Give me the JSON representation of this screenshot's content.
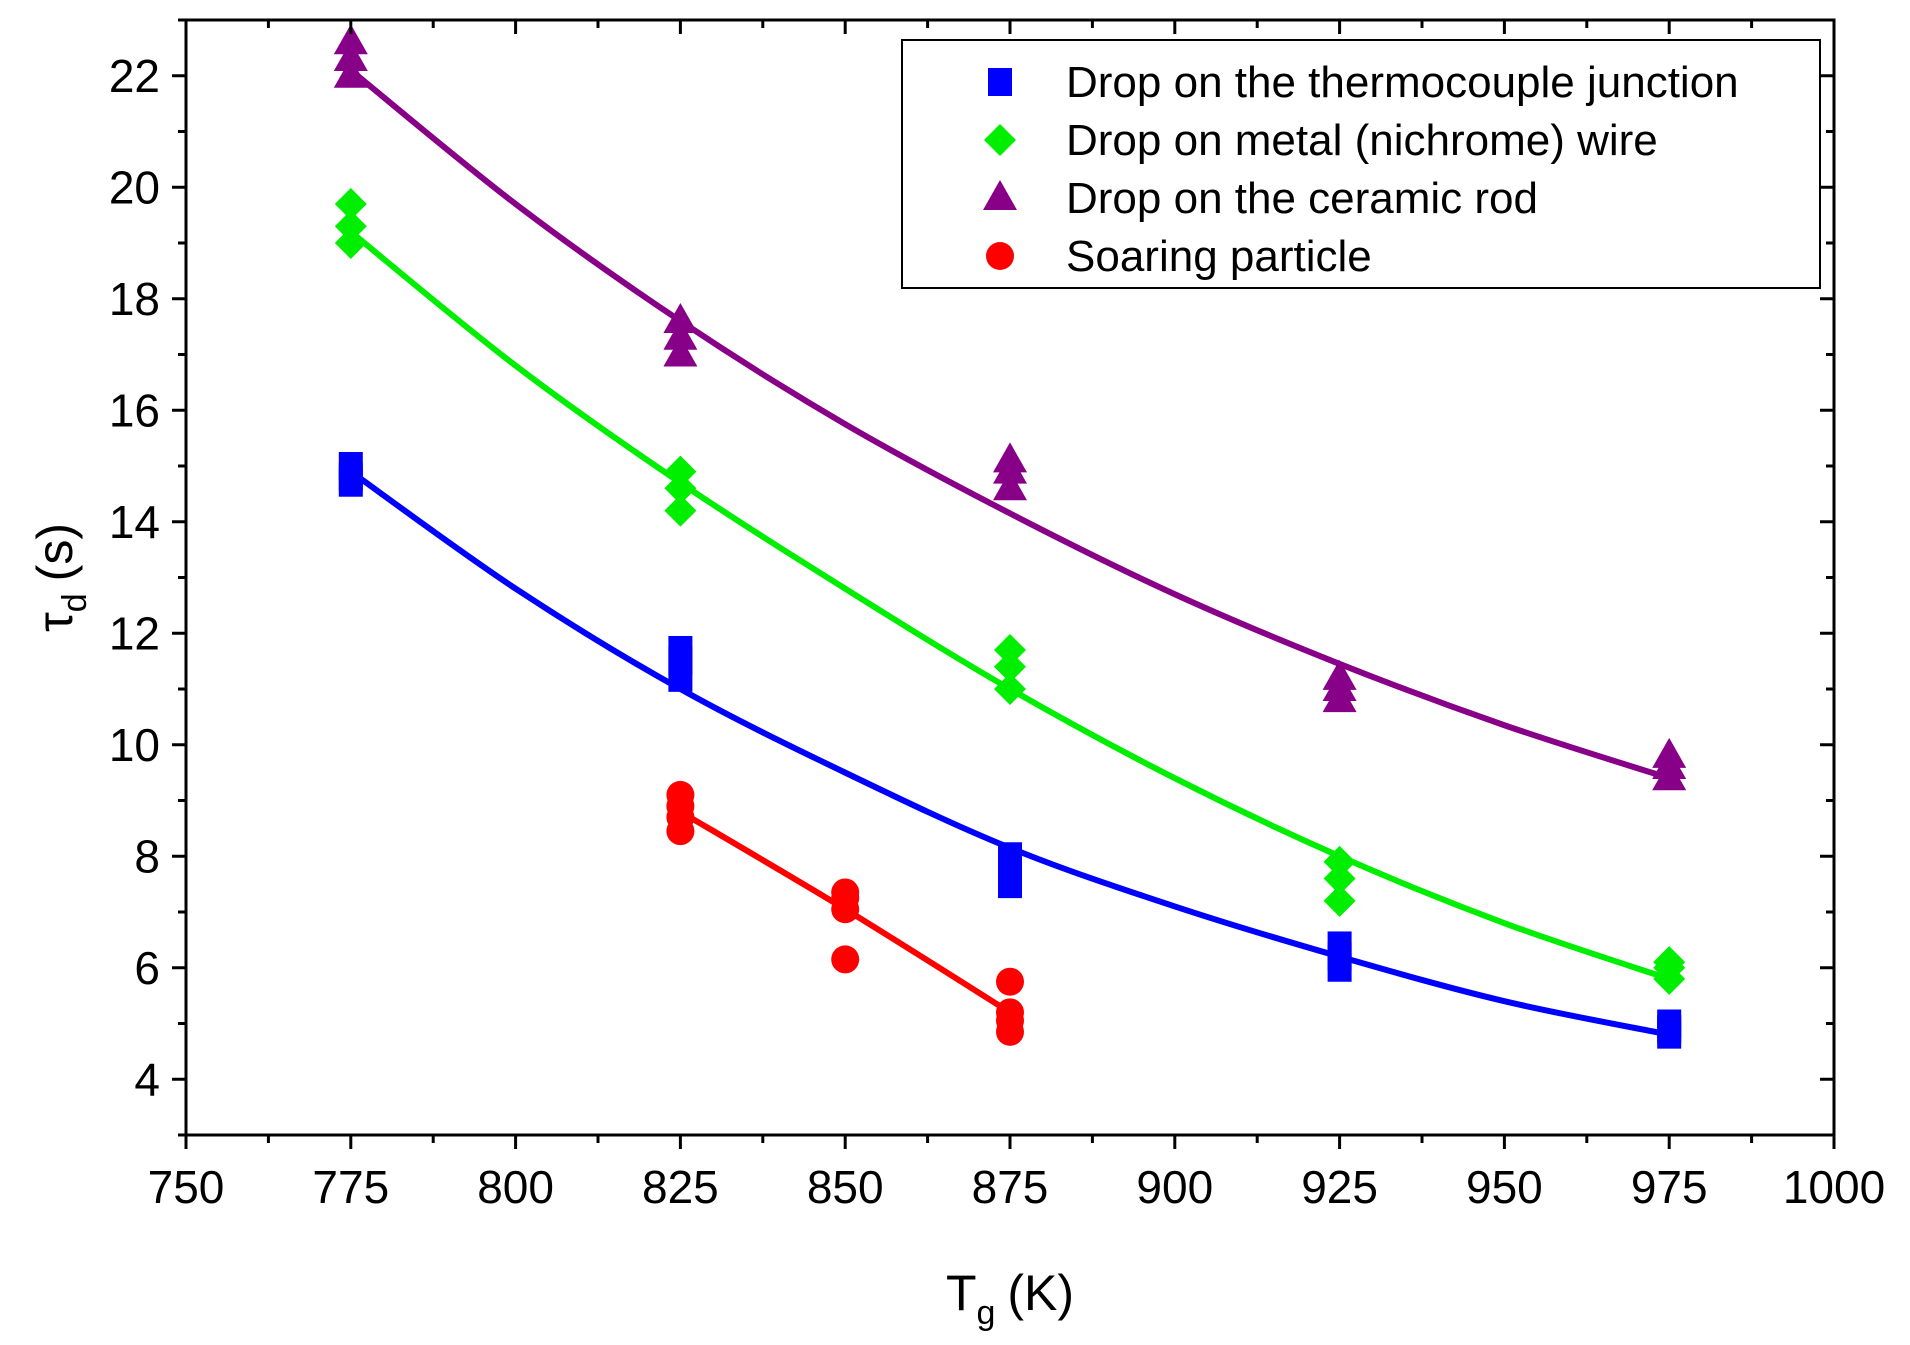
{
  "chart_data": {
    "type": "scatter",
    "title": "",
    "xlabel": "T",
    "xlabel_sub": "g",
    "xlabel_unit": "(K)",
    "ylabel": "τ",
    "ylabel_sub": "d",
    "ylabel_unit": "(s)",
    "xlim": [
      750,
      1000
    ],
    "ylim": [
      3,
      23
    ],
    "x_ticks": [
      750,
      775,
      800,
      825,
      850,
      875,
      900,
      925,
      950,
      975,
      1000
    ],
    "y_ticks": [
      4,
      6,
      8,
      10,
      12,
      14,
      16,
      18,
      20,
      22
    ],
    "legend_position": "top-right",
    "series": [
      {
        "name": "Drop on the thermocouple junction",
        "color": "#0000ff",
        "marker": "square",
        "points": [
          [
            775,
            14.7
          ],
          [
            775,
            15.0
          ],
          [
            775,
            14.8
          ],
          [
            825,
            11.2
          ],
          [
            825,
            11.5
          ],
          [
            825,
            11.7
          ],
          [
            875,
            7.5
          ],
          [
            875,
            7.8
          ],
          [
            875,
            8.0
          ],
          [
            925,
            6.0
          ],
          [
            925,
            6.2
          ],
          [
            925,
            6.4
          ],
          [
            975,
            4.8
          ],
          [
            975,
            4.9
          ],
          [
            975,
            5.0
          ]
        ],
        "fit": {
          "x": [
            775,
            800,
            825,
            850,
            875,
            900,
            925,
            950,
            975
          ],
          "y": [
            14.9,
            12.8,
            11.0,
            9.5,
            8.15,
            7.1,
            6.2,
            5.4,
            4.8
          ]
        }
      },
      {
        "name": "Drop on metal (nichrome) wire",
        "color": "#00ee00",
        "marker": "diamond",
        "points": [
          [
            775,
            19.0
          ],
          [
            775,
            19.3
          ],
          [
            775,
            19.7
          ],
          [
            825,
            14.2
          ],
          [
            825,
            14.6
          ],
          [
            825,
            14.9
          ],
          [
            875,
            11.0
          ],
          [
            875,
            11.4
          ],
          [
            875,
            11.7
          ],
          [
            925,
            7.2
          ],
          [
            925,
            7.6
          ],
          [
            925,
            7.9
          ],
          [
            975,
            5.8
          ],
          [
            975,
            6.0
          ],
          [
            975,
            6.1
          ]
        ],
        "fit": {
          "x": [
            775,
            800,
            825,
            850,
            875,
            900,
            925,
            950,
            975
          ],
          "y": [
            19.2,
            16.8,
            14.7,
            12.8,
            11.0,
            9.4,
            8.0,
            6.8,
            5.8
          ]
        }
      },
      {
        "name": "Drop on the ceramic rod",
        "color": "#880088",
        "marker": "triangle",
        "points": [
          [
            775,
            22.0
          ],
          [
            775,
            22.3
          ],
          [
            775,
            22.6
          ],
          [
            825,
            17.0
          ],
          [
            825,
            17.3
          ],
          [
            825,
            17.6
          ],
          [
            875,
            14.6
          ],
          [
            875,
            14.9
          ],
          [
            875,
            15.1
          ],
          [
            925,
            10.8
          ],
          [
            925,
            11.0
          ],
          [
            925,
            11.2
          ],
          [
            975,
            9.4
          ],
          [
            975,
            9.6
          ],
          [
            975,
            9.8
          ]
        ],
        "fit": {
          "x": [
            775,
            800,
            825,
            850,
            875,
            900,
            925,
            950,
            975
          ],
          "y": [
            22.1,
            19.7,
            17.6,
            15.75,
            14.15,
            12.7,
            11.45,
            10.35,
            9.4
          ]
        }
      },
      {
        "name": "Soaring particle",
        "color": "#ff0000",
        "marker": "circle",
        "points": [
          [
            825,
            8.45
          ],
          [
            825,
            8.7
          ],
          [
            825,
            8.9
          ],
          [
            825,
            9.1
          ],
          [
            850,
            6.15
          ],
          [
            850,
            7.05
          ],
          [
            850,
            7.25
          ],
          [
            850,
            7.35
          ],
          [
            875,
            4.85
          ],
          [
            875,
            5.05
          ],
          [
            875,
            5.2
          ],
          [
            875,
            5.75
          ]
        ],
        "fit": {
          "x": [
            825,
            850,
            875
          ],
          "y": [
            8.8,
            7.05,
            5.2
          ]
        }
      }
    ]
  }
}
